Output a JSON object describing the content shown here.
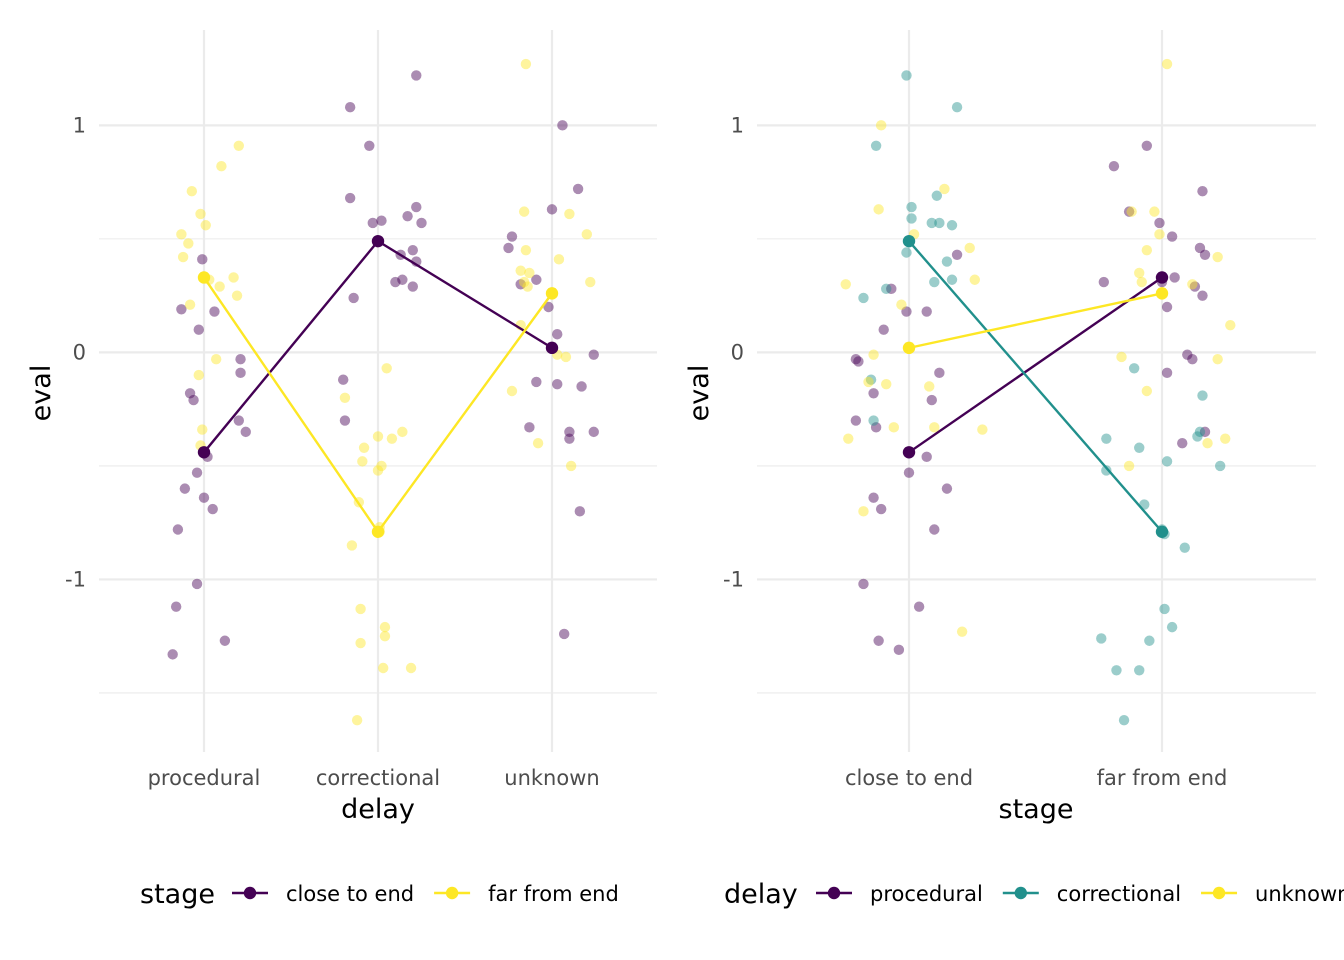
{
  "chart_data": [
    {
      "type": "scatter",
      "xlabel": "delay",
      "ylabel": "eval",
      "categories": [
        "procedural",
        "correctional",
        "unknown"
      ],
      "ylim": [
        -1.76,
        1.42
      ],
      "yticks": [
        "-1",
        "0",
        "1"
      ],
      "legend": {
        "title": "stage",
        "position": "bottom"
      },
      "series": [
        {
          "name": "close to end",
          "color": "#440154",
          "means": [
            -0.44,
            0.49,
            0.02
          ],
          "points": [
            [
              0.82,
              -1.33
            ],
            [
              0.84,
              -1.12
            ],
            [
              0.85,
              -0.78
            ],
            [
              0.87,
              0.19
            ],
            [
              0.89,
              -0.6
            ],
            [
              0.92,
              -0.18
            ],
            [
              0.94,
              -0.21
            ],
            [
              0.96,
              -1.02
            ],
            [
              0.96,
              -0.53
            ],
            [
              0.97,
              0.1
            ],
            [
              0.99,
              0.41
            ],
            [
              1.0,
              -0.64
            ],
            [
              1.02,
              -0.46
            ],
            [
              1.05,
              -0.69
            ],
            [
              1.06,
              0.18
            ],
            [
              1.12,
              -1.27
            ],
            [
              1.2,
              -0.3
            ],
            [
              1.21,
              -0.09
            ],
            [
              1.21,
              -0.03
            ],
            [
              1.24,
              -0.35
            ],
            [
              1.8,
              -0.12
            ],
            [
              1.81,
              -0.3
            ],
            [
              1.84,
              1.08
            ],
            [
              1.84,
              0.68
            ],
            [
              1.86,
              0.24
            ],
            [
              1.95,
              0.91
            ],
            [
              1.97,
              0.57
            ],
            [
              2.02,
              0.58
            ],
            [
              2.1,
              0.31
            ],
            [
              2.13,
              0.43
            ],
            [
              2.14,
              0.32
            ],
            [
              2.17,
              0.6
            ],
            [
              2.2,
              0.45
            ],
            [
              2.2,
              0.29
            ],
            [
              2.22,
              1.22
            ],
            [
              2.22,
              0.64
            ],
            [
              2.22,
              0.4
            ],
            [
              2.25,
              0.57
            ],
            [
              2.75,
              0.46
            ],
            [
              2.77,
              0.51
            ],
            [
              2.82,
              0.3
            ],
            [
              2.87,
              -0.33
            ],
            [
              2.91,
              -0.13
            ],
            [
              2.91,
              0.32
            ],
            [
              2.98,
              0.2
            ],
            [
              3.0,
              0.63
            ],
            [
              3.03,
              -0.14
            ],
            [
              3.03,
              0.08
            ],
            [
              3.06,
              1.0
            ],
            [
              3.07,
              -1.24
            ],
            [
              3.1,
              -0.38
            ],
            [
              3.1,
              -0.35
            ],
            [
              3.15,
              0.72
            ],
            [
              3.16,
              -0.7
            ],
            [
              3.17,
              -0.15
            ],
            [
              3.24,
              -0.01
            ],
            [
              3.24,
              -0.35
            ]
          ]
        },
        {
          "name": "far from end",
          "color": "#fde725",
          "means": [
            0.33,
            -0.79,
            0.26
          ],
          "points": [
            [
              0.87,
              0.52
            ],
            [
              0.88,
              0.42
            ],
            [
              0.91,
              0.48
            ],
            [
              0.92,
              0.21
            ],
            [
              0.93,
              0.71
            ],
            [
              0.97,
              -0.1
            ],
            [
              0.98,
              0.61
            ],
            [
              0.98,
              -0.41
            ],
            [
              0.99,
              -0.34
            ],
            [
              1.01,
              0.56
            ],
            [
              1.03,
              0.32
            ],
            [
              1.07,
              -0.03
            ],
            [
              1.09,
              0.29
            ],
            [
              1.1,
              0.82
            ],
            [
              1.17,
              0.33
            ],
            [
              1.19,
              0.25
            ],
            [
              1.2,
              0.91
            ],
            [
              1.81,
              -0.2
            ],
            [
              1.85,
              -0.85
            ],
            [
              1.88,
              -1.62
            ],
            [
              1.89,
              -0.66
            ],
            [
              1.9,
              -1.13
            ],
            [
              1.9,
              -1.28
            ],
            [
              1.91,
              -0.48
            ],
            [
              1.92,
              -0.42
            ],
            [
              2.0,
              -0.37
            ],
            [
              2.0,
              -0.52
            ],
            [
              2.01,
              -0.77
            ],
            [
              2.01,
              -0.79
            ],
            [
              2.02,
              -0.5
            ],
            [
              2.03,
              -1.39
            ],
            [
              2.04,
              -1.25
            ],
            [
              2.04,
              -1.21
            ],
            [
              2.05,
              -0.07
            ],
            [
              2.08,
              -0.38
            ],
            [
              2.14,
              -0.35
            ],
            [
              2.19,
              -1.39
            ],
            [
              2.77,
              -0.17
            ],
            [
              2.82,
              0.36
            ],
            [
              2.82,
              0.12
            ],
            [
              2.84,
              0.31
            ],
            [
              2.84,
              0.62
            ],
            [
              2.85,
              0.45
            ],
            [
              2.86,
              0.29
            ],
            [
              2.87,
              0.35
            ],
            [
              2.92,
              -0.4
            ],
            [
              3.03,
              -0.01
            ],
            [
              3.04,
              0.41
            ],
            [
              3.08,
              -0.02
            ],
            [
              3.1,
              0.61
            ],
            [
              3.11,
              -0.5
            ],
            [
              3.2,
              0.52
            ],
            [
              3.22,
              0.31
            ],
            [
              2.85,
              1.27
            ]
          ]
        }
      ]
    },
    {
      "type": "scatter",
      "xlabel": "stage",
      "ylabel": "eval",
      "categories": [
        "close to end",
        "far from end"
      ],
      "ylim": [
        -1.76,
        1.42
      ],
      "yticks": [
        "-1",
        "0",
        "1"
      ],
      "legend": {
        "title": "delay",
        "position": "bottom"
      },
      "series": [
        {
          "name": "procedural",
          "color": "#440154",
          "means": [
            -0.44,
            0.33
          ],
          "points": [
            [
              0.79,
              -0.03
            ],
            [
              0.79,
              -0.3
            ],
            [
              0.8,
              -0.04
            ],
            [
              0.82,
              -1.02
            ],
            [
              0.86,
              -0.18
            ],
            [
              0.86,
              -0.64
            ],
            [
              0.87,
              -0.33
            ],
            [
              0.88,
              -1.27
            ],
            [
              0.89,
              -0.69
            ],
            [
              0.9,
              0.1
            ],
            [
              0.93,
              0.28
            ],
            [
              0.96,
              -1.31
            ],
            [
              0.99,
              0.18
            ],
            [
              1.0,
              -0.53
            ],
            [
              1.04,
              -1.12
            ],
            [
              1.07,
              0.18
            ],
            [
              1.07,
              -0.46
            ],
            [
              1.09,
              -0.21
            ],
            [
              1.1,
              -0.78
            ],
            [
              1.12,
              -0.09
            ],
            [
              1.15,
              -0.6
            ],
            [
              1.19,
              0.43
            ],
            [
              1.77,
              0.31
            ],
            [
              1.81,
              0.82
            ],
            [
              1.87,
              0.62
            ],
            [
              1.94,
              0.91
            ],
            [
              1.99,
              0.57
            ],
            [
              2.0,
              0.31
            ],
            [
              2.02,
              0.2
            ],
            [
              2.02,
              -0.09
            ],
            [
              2.04,
              0.51
            ],
            [
              2.05,
              0.33
            ],
            [
              2.08,
              -0.4
            ],
            [
              2.1,
              -0.01
            ],
            [
              2.13,
              0.29
            ],
            [
              2.15,
              0.46
            ],
            [
              2.16,
              0.71
            ],
            [
              2.16,
              0.25
            ],
            [
              2.17,
              -0.35
            ],
            [
              2.17,
              0.43
            ],
            [
              2.12,
              -0.03
            ]
          ]
        },
        {
          "name": "correctional",
          "color": "#21908c",
          "means": [
            0.49,
            -0.79
          ],
          "points": [
            [
              0.82,
              0.24
            ],
            [
              0.85,
              -0.12
            ],
            [
              0.86,
              -0.3
            ],
            [
              0.87,
              0.91
            ],
            [
              0.91,
              0.28
            ],
            [
              0.99,
              1.22
            ],
            [
              0.99,
              0.44
            ],
            [
              1.01,
              0.64
            ],
            [
              1.01,
              0.59
            ],
            [
              1.09,
              0.57
            ],
            [
              1.1,
              0.31
            ],
            [
              1.11,
              0.69
            ],
            [
              1.12,
              0.57
            ],
            [
              1.15,
              0.4
            ],
            [
              1.17,
              0.56
            ],
            [
              1.17,
              0.32
            ],
            [
              1.19,
              1.08
            ],
            [
              1.76,
              -1.26
            ],
            [
              1.78,
              -0.38
            ],
            [
              1.78,
              -0.52
            ],
            [
              1.82,
              -1.4
            ],
            [
              1.85,
              -1.62
            ],
            [
              1.89,
              -0.07
            ],
            [
              1.91,
              -1.4
            ],
            [
              1.91,
              -0.42
            ],
            [
              1.93,
              -0.67
            ],
            [
              1.95,
              -1.27
            ],
            [
              2.0,
              -0.78
            ],
            [
              2.01,
              -0.8
            ],
            [
              2.01,
              -1.13
            ],
            [
              2.02,
              -0.48
            ],
            [
              2.04,
              -1.21
            ],
            [
              2.09,
              -0.86
            ],
            [
              2.14,
              -0.37
            ],
            [
              2.15,
              -0.35
            ],
            [
              2.16,
              -0.19
            ],
            [
              2.23,
              -0.5
            ]
          ]
        },
        {
          "name": "unknown",
          "color": "#fde725",
          "means": [
            0.02,
            0.26
          ],
          "points": [
            [
              0.75,
              0.3
            ],
            [
              0.76,
              -0.38
            ],
            [
              0.82,
              -0.7
            ],
            [
              0.84,
              -0.13
            ],
            [
              0.86,
              -0.01
            ],
            [
              0.88,
              0.63
            ],
            [
              0.89,
              1.0
            ],
            [
              0.91,
              -0.14
            ],
            [
              0.94,
              -0.33
            ],
            [
              0.97,
              0.21
            ],
            [
              1.02,
              0.52
            ],
            [
              1.08,
              -0.15
            ],
            [
              1.1,
              -0.33
            ],
            [
              1.14,
              0.72
            ],
            [
              1.21,
              -1.23
            ],
            [
              1.24,
              0.46
            ],
            [
              1.26,
              0.32
            ],
            [
              1.29,
              -0.34
            ],
            [
              1.84,
              -0.02
            ],
            [
              1.87,
              -0.5
            ],
            [
              1.88,
              0.62
            ],
            [
              1.91,
              0.35
            ],
            [
              1.92,
              0.31
            ],
            [
              1.94,
              -0.17
            ],
            [
              1.94,
              0.45
            ],
            [
              1.97,
              0.62
            ],
            [
              1.99,
              0.52
            ],
            [
              2.0,
              0.33
            ],
            [
              2.02,
              1.27
            ],
            [
              2.12,
              0.3
            ],
            [
              2.18,
              -0.4
            ],
            [
              2.22,
              0.42
            ],
            [
              2.22,
              -0.03
            ],
            [
              2.25,
              -0.38
            ],
            [
              2.27,
              0.12
            ]
          ]
        }
      ]
    }
  ]
}
